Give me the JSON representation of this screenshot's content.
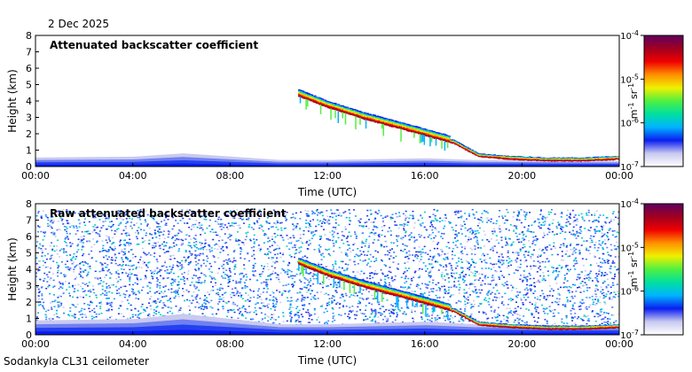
{
  "date": "2 Dec 2025",
  "footer": "Sodankyla CL31 ceilometer",
  "chart_data": [
    {
      "type": "heatmap",
      "title": "Attenuated backscatter coefficient",
      "xlabel": "Time (UTC)",
      "ylabel": "Height (km)",
      "xticks": [
        "00:00",
        "04:00",
        "08:00",
        "12:00",
        "16:00",
        "20:00",
        "00:00"
      ],
      "xlim_hours": [
        0,
        24
      ],
      "yticks": [
        0,
        1,
        2,
        3,
        4,
        5,
        6,
        7,
        8
      ],
      "ylim": [
        0,
        8
      ],
      "colorbar": {
        "scale": "log",
        "ticks": [
          "10^-7",
          "10^-6",
          "10^-5",
          "10^-4"
        ],
        "min": 1e-07,
        "max": 0.0001,
        "label_base": "m",
        "label_exp1": "-1",
        "label_mid": " sr",
        "label_exp2": "-1",
        "colors": [
          "#ffffff",
          "#c9c9f0",
          "#0a1ef0",
          "#00b4ff",
          "#00e0a0",
          "#50f040",
          "#f0f000",
          "#ff9000",
          "#f00000",
          "#a00020",
          "#600060"
        ]
      },
      "noise": false
    },
    {
      "type": "heatmap",
      "title": "Raw attenuated backscatter coefficient",
      "xlabel": "Time (UTC)",
      "ylabel": "Height (km)",
      "xticks": [
        "00:00",
        "04:00",
        "08:00",
        "12:00",
        "16:00",
        "20:00",
        "00:00"
      ],
      "xlim_hours": [
        0,
        24
      ],
      "yticks": [
        0,
        1,
        2,
        3,
        4,
        5,
        6,
        7,
        8
      ],
      "ylim": [
        0,
        8
      ],
      "colorbar": {
        "scale": "log",
        "ticks": [
          "10^-7",
          "10^-6",
          "10^-5",
          "10^-4"
        ],
        "min": 1e-07,
        "max": 0.0001,
        "label_base": "m",
        "label_exp1": "-1",
        "label_mid": " sr",
        "label_exp2": "-1",
        "colors": [
          "#ffffff",
          "#c9c9f0",
          "#0a1ef0",
          "#00b4ff",
          "#00e0a0",
          "#50f040",
          "#f0f000",
          "#ff9000",
          "#f00000",
          "#a00020",
          "#600060"
        ]
      },
      "noise": true
    }
  ],
  "cloud_layer": {
    "description_hours_to_height_km": [
      [
        10.8,
        4.3
      ],
      [
        12,
        3.6
      ],
      [
        13.5,
        2.9
      ],
      [
        15,
        2.3
      ],
      [
        16,
        1.9
      ],
      [
        17.2,
        1.4
      ],
      [
        18.2,
        0.6
      ],
      [
        19.5,
        0.45
      ],
      [
        21,
        0.35
      ],
      [
        22.5,
        0.35
      ],
      [
        24,
        0.45
      ]
    ]
  },
  "boundary_layer_height_km": [
    [
      0,
      0.55
    ],
    [
      4,
      0.6
    ],
    [
      6,
      0.8
    ],
    [
      8,
      0.6
    ],
    [
      10,
      0.4
    ],
    [
      12,
      0.4
    ],
    [
      14,
      0.45
    ],
    [
      16,
      0.5
    ],
    [
      18,
      0.4
    ],
    [
      24,
      0.35
    ]
  ]
}
